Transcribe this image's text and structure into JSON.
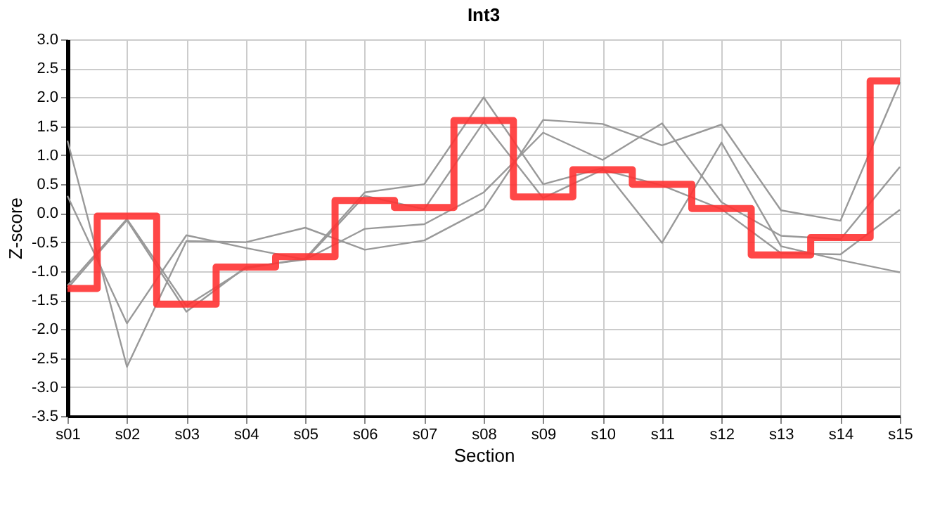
{
  "chart_data": {
    "type": "line",
    "title": "Int3",
    "xlabel": "Section",
    "ylabel": "Z-score",
    "categories": [
      "s01",
      "s02",
      "s03",
      "s04",
      "s05",
      "s06",
      "s07",
      "s08",
      "s09",
      "s10",
      "s11",
      "s12",
      "s13",
      "s14",
      "s15"
    ],
    "series": [
      {
        "color": "#999999",
        "values": [
          1.25,
          -2.65,
          -0.48,
          -0.5,
          -0.25,
          -0.63,
          -0.47,
          0.07,
          1.61,
          1.54,
          1.17,
          1.53,
          0.05,
          -0.13,
          2.26
        ]
      },
      {
        "color": "#999999",
        "values": [
          0.3,
          -1.9,
          -0.38,
          -0.6,
          -0.8,
          -0.27,
          -0.19,
          0.36,
          1.39,
          0.92,
          1.55,
          0.19,
          -0.39,
          -0.45,
          0.8
        ]
      },
      {
        "color": "#999999",
        "values": [
          -1.25,
          -0.1,
          -1.6,
          -0.95,
          -0.78,
          0.36,
          0.5,
          2.0,
          0.5,
          0.78,
          -0.51,
          1.22,
          -0.57,
          -0.81,
          -1.02
        ]
      },
      {
        "color": "#999999",
        "values": [
          -1.3,
          -0.12,
          -1.7,
          -0.93,
          -0.8,
          0.3,
          0.07,
          1.57,
          0.26,
          0.75,
          0.48,
          0.07,
          -0.69,
          -0.71,
          0.06
        ]
      },
      {
        "type": "step",
        "color": "#ff3333",
        "values": [
          -1.3,
          -0.05,
          -1.57,
          -0.93,
          -0.75,
          0.22,
          0.1,
          1.6,
          0.28,
          0.75,
          0.5,
          0.08,
          -0.72,
          -0.42,
          2.28
        ]
      }
    ],
    "ylim": [
      -3.5,
      3.0
    ],
    "yticks": [
      {
        "value": -3.5,
        "label": "-3.5"
      },
      {
        "value": -3,
        "label": "-3.0"
      },
      {
        "value": -2.5,
        "label": "-2.5"
      },
      {
        "value": -2,
        "label": "-2.0"
      },
      {
        "value": -1.5,
        "label": "-1.5"
      },
      {
        "value": -1,
        "label": "-1.0"
      },
      {
        "value": -0.5,
        "label": "-0.5"
      },
      {
        "value": 0,
        "label": "0.0"
      },
      {
        "value": 0.5,
        "label": "0.5"
      },
      {
        "value": 1,
        "label": "1.0"
      },
      {
        "value": 1.5,
        "label": "1.5"
      },
      {
        "value": 2,
        "label": "2.0"
      },
      {
        "value": 2.5,
        "label": "2.5"
      },
      {
        "value": 3,
        "label": "3.0"
      }
    ],
    "grid": true,
    "marker": "none",
    "line_style": "solid"
  }
}
